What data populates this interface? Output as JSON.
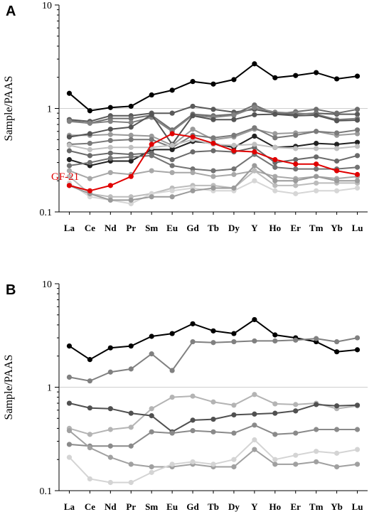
{
  "chart_data": [
    {
      "panel": "A",
      "type": "line",
      "ylabel": "Sample/PAAS",
      "yscale": "log",
      "ylim": [
        0.1,
        10
      ],
      "yticks": [
        "0.1",
        "1",
        "10"
      ],
      "categories": [
        "La",
        "Ce",
        "Nd",
        "Pr",
        "Sm",
        "Eu",
        "Gd",
        "Tb",
        "Dy",
        "Y",
        "Ho",
        "Er",
        "Tm",
        "Yb",
        "Lu"
      ],
      "reference_line": 1,
      "annotation": {
        "text": "GF-21",
        "color": "#e00000"
      },
      "series": [
        {
          "color": "#000000",
          "values": [
            1.4,
            0.95,
            1.02,
            1.05,
            1.35,
            1.5,
            1.82,
            1.72,
            1.9,
            2.7,
            1.98,
            2.08,
            2.22,
            1.93,
            2.05
          ]
        },
        {
          "color": "#5a5a5a",
          "values": [
            0.78,
            0.75,
            0.85,
            0.85,
            0.9,
            0.9,
            1.05,
            0.98,
            0.92,
            0.98,
            0.9,
            0.88,
            0.9,
            0.88,
            0.88
          ]
        },
        {
          "color": "#6e6e6e",
          "values": [
            0.76,
            0.72,
            0.8,
            0.8,
            0.86,
            0.62,
            0.88,
            0.85,
            0.88,
            1.08,
            0.88,
            0.93,
            0.98,
            0.9,
            0.98
          ]
        },
        {
          "color": "#828282",
          "values": [
            0.75,
            0.72,
            0.75,
            0.73,
            0.82,
            0.6,
            0.86,
            0.82,
            0.86,
            1.02,
            0.92,
            0.9,
            0.88,
            0.78,
            0.8
          ]
        },
        {
          "color": "#9a9a9a",
          "values": [
            0.55,
            0.55,
            0.56,
            0.55,
            0.54,
            0.44,
            0.63,
            0.5,
            0.53,
            0.63,
            0.57,
            0.58,
            0.6,
            0.55,
            0.57
          ]
        },
        {
          "color": "#555555",
          "values": [
            0.53,
            0.57,
            0.63,
            0.66,
            0.87,
            0.45,
            0.85,
            0.78,
            0.78,
            0.87,
            0.88,
            0.85,
            0.86,
            0.76,
            0.77
          ]
        },
        {
          "color": "#7a7a7a",
          "values": [
            0.45,
            0.46,
            0.49,
            0.5,
            0.5,
            0.42,
            0.55,
            0.52,
            0.55,
            0.65,
            0.52,
            0.55,
            0.6,
            0.58,
            0.62
          ]
        },
        {
          "color": "#222222",
          "values": [
            0.32,
            0.28,
            0.31,
            0.31,
            0.4,
            0.4,
            0.48,
            0.46,
            0.42,
            0.54,
            0.42,
            0.43,
            0.46,
            0.45,
            0.47
          ]
        },
        {
          "color": "#6a6a6a",
          "values": [
            0.39,
            0.35,
            0.37,
            0.36,
            0.37,
            0.32,
            0.38,
            0.39,
            0.38,
            0.42,
            0.3,
            0.32,
            0.34,
            0.31,
            0.35
          ]
        },
        {
          "color": "#c0c0c0",
          "values": [
            0.44,
            0.4,
            0.42,
            0.42,
            0.42,
            0.44,
            0.5,
            0.45,
            0.44,
            0.45,
            0.42,
            0.41,
            0.41,
            0.41,
            0.43
          ]
        },
        {
          "color": "#737373",
          "values": [
            0.28,
            0.3,
            0.33,
            0.34,
            0.35,
            0.28,
            0.26,
            0.25,
            0.26,
            0.36,
            0.27,
            0.26,
            0.26,
            0.26,
            0.27
          ]
        },
        {
          "color": "#a8a8a8",
          "values": [
            0.25,
            0.21,
            0.24,
            0.23,
            0.25,
            0.24,
            0.24,
            0.22,
            0.23,
            0.25,
            0.22,
            0.21,
            0.22,
            0.21,
            0.22
          ]
        },
        {
          "color": "#bcbcbc",
          "values": [
            0.22,
            0.15,
            0.14,
            0.14,
            0.15,
            0.17,
            0.18,
            0.18,
            0.17,
            0.25,
            0.18,
            0.18,
            0.19,
            0.19,
            0.19
          ]
        },
        {
          "color": "#d6d6d6",
          "values": [
            0.19,
            0.14,
            0.13,
            0.12,
            0.15,
            0.16,
            0.17,
            0.16,
            0.16,
            0.2,
            0.16,
            0.15,
            0.16,
            0.16,
            0.17
          ]
        },
        {
          "color": "#9a9a9a",
          "values": [
            0.18,
            0.15,
            0.13,
            0.13,
            0.14,
            0.14,
            0.16,
            0.17,
            0.17,
            0.28,
            0.2,
            0.2,
            0.22,
            0.2,
            0.2
          ]
        },
        {
          "name": "GF-21",
          "color": "#e00000",
          "values": [
            0.18,
            0.16,
            0.18,
            0.22,
            0.45,
            0.57,
            0.53,
            0.46,
            0.39,
            0.38,
            0.32,
            0.29,
            0.29,
            0.25,
            0.23
          ]
        }
      ]
    },
    {
      "panel": "B",
      "type": "line",
      "ylabel": "Sample/PAAS",
      "yscale": "log",
      "ylim": [
        0.1,
        10
      ],
      "yticks": [
        "0.1",
        "1",
        "10"
      ],
      "categories": [
        "La",
        "Ce",
        "Nd",
        "Pr",
        "Sm",
        "Eu",
        "Gd",
        "Tb",
        "Dy",
        "Y",
        "Ho",
        "Er",
        "Tm",
        "Yb",
        "Lu"
      ],
      "reference_line": 1,
      "series": [
        {
          "color": "#000000",
          "values": [
            2.5,
            1.85,
            2.4,
            2.5,
            3.1,
            3.3,
            4.1,
            3.5,
            3.3,
            4.5,
            3.2,
            3.0,
            2.75,
            2.2,
            2.3
          ]
        },
        {
          "color": "#808080",
          "values": [
            1.25,
            1.15,
            1.4,
            1.5,
            2.1,
            1.45,
            2.75,
            2.7,
            2.75,
            2.8,
            2.8,
            2.85,
            2.95,
            2.75,
            3.0
          ]
        },
        {
          "color": "#b4b4b4",
          "values": [
            0.4,
            0.35,
            0.39,
            0.41,
            0.62,
            0.8,
            0.82,
            0.72,
            0.67,
            0.85,
            0.69,
            0.68,
            0.7,
            0.62,
            0.66
          ]
        },
        {
          "color": "#505050",
          "values": [
            0.7,
            0.63,
            0.62,
            0.56,
            0.53,
            0.37,
            0.48,
            0.49,
            0.54,
            0.55,
            0.56,
            0.59,
            0.68,
            0.66,
            0.67
          ]
        },
        {
          "color": "#8a8a8a",
          "values": [
            0.28,
            0.27,
            0.27,
            0.27,
            0.37,
            0.36,
            0.38,
            0.37,
            0.36,
            0.43,
            0.35,
            0.36,
            0.39,
            0.39,
            0.39
          ]
        },
        {
          "color": "#a0a0a0",
          "values": [
            0.38,
            0.26,
            0.21,
            0.18,
            0.17,
            0.17,
            0.18,
            0.17,
            0.17,
            0.25,
            0.18,
            0.18,
            0.19,
            0.17,
            0.18
          ]
        },
        {
          "color": "#d4d4d4",
          "values": [
            0.21,
            0.13,
            0.12,
            0.12,
            0.15,
            0.18,
            0.19,
            0.18,
            0.2,
            0.31,
            0.2,
            0.22,
            0.24,
            0.23,
            0.25
          ]
        }
      ]
    }
  ]
}
